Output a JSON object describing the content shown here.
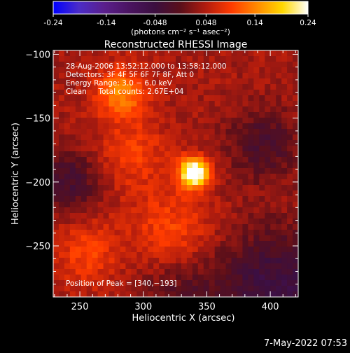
{
  "colorbar": {
    "tick_labels": [
      "-0.24",
      "-0.14",
      "-0.048",
      "0.048",
      "0.14",
      "0.24"
    ],
    "unit_label": "(photons cm⁻² s⁻¹ asec⁻²)",
    "colors": [
      "#0000ff",
      "#4b2cc8",
      "#5a1f8c",
      "#4a1460",
      "#3b0f3f",
      "#5a0f1a",
      "#b21c0e",
      "#ff3b00",
      "#ff8a00",
      "#ffd800",
      "#ffffff"
    ]
  },
  "chart_data": {
    "type": "heatmap",
    "title": "Reconstructed RHESSI Image",
    "xlabel": "Heliocentric X (arcsec)",
    "ylabel": "Heliocentric Y (arcsec)",
    "xlim": [
      229,
      422
    ],
    "ylim": [
      -290,
      -97
    ],
    "x_ticks": [
      250,
      300,
      350,
      400
    ],
    "y_ticks": [
      -100,
      -150,
      -200,
      -250
    ],
    "x_tick_labels": [
      "250",
      "300",
      "350",
      "400"
    ],
    "y_tick_labels": [
      "−100",
      "−150",
      "−200",
      "−250"
    ],
    "value_range": [
      -0.24,
      0.24
    ],
    "sources": [
      {
        "x": 340,
        "y": -193,
        "peak": 0.24,
        "sigma": 8
      },
      {
        "x": 282,
        "y": -130,
        "peak": 0.1,
        "sigma": 14
      },
      {
        "x": 322,
        "y": -238,
        "peak": 0.06,
        "sigma": 22
      },
      {
        "x": 255,
        "y": -255,
        "peak": 0.055,
        "sigma": 18
      },
      {
        "x": 292,
        "y": -178,
        "peak": 0.05,
        "sigma": 20
      }
    ],
    "background_level": 0.04,
    "negative_regions": [
      {
        "x": 405,
        "y": -280,
        "peak": -0.09,
        "sigma": 30
      },
      {
        "x": 240,
        "y": -200,
        "peak": -0.07,
        "sigma": 18
      },
      {
        "x": 395,
        "y": -170,
        "peak": -0.06,
        "sigma": 20
      },
      {
        "x": 330,
        "y": -290,
        "peak": -0.05,
        "sigma": 25
      }
    ],
    "info_lines": [
      "28-Aug-2006 13:52:12.000 to 13:58:12.000",
      "Detectors: 3F 4F 5F 6F 7F 8F, Att 0",
      "Energy Range: 3.0 − 6.0 keV",
      "Clean     Total counts: 2.67E+04"
    ],
    "peak_label": "Position of Peak = [340,−193]",
    "peak_position": [
      340,
      -193
    ]
  },
  "footer": {
    "timestamp": "7-May-2022 07:53"
  }
}
